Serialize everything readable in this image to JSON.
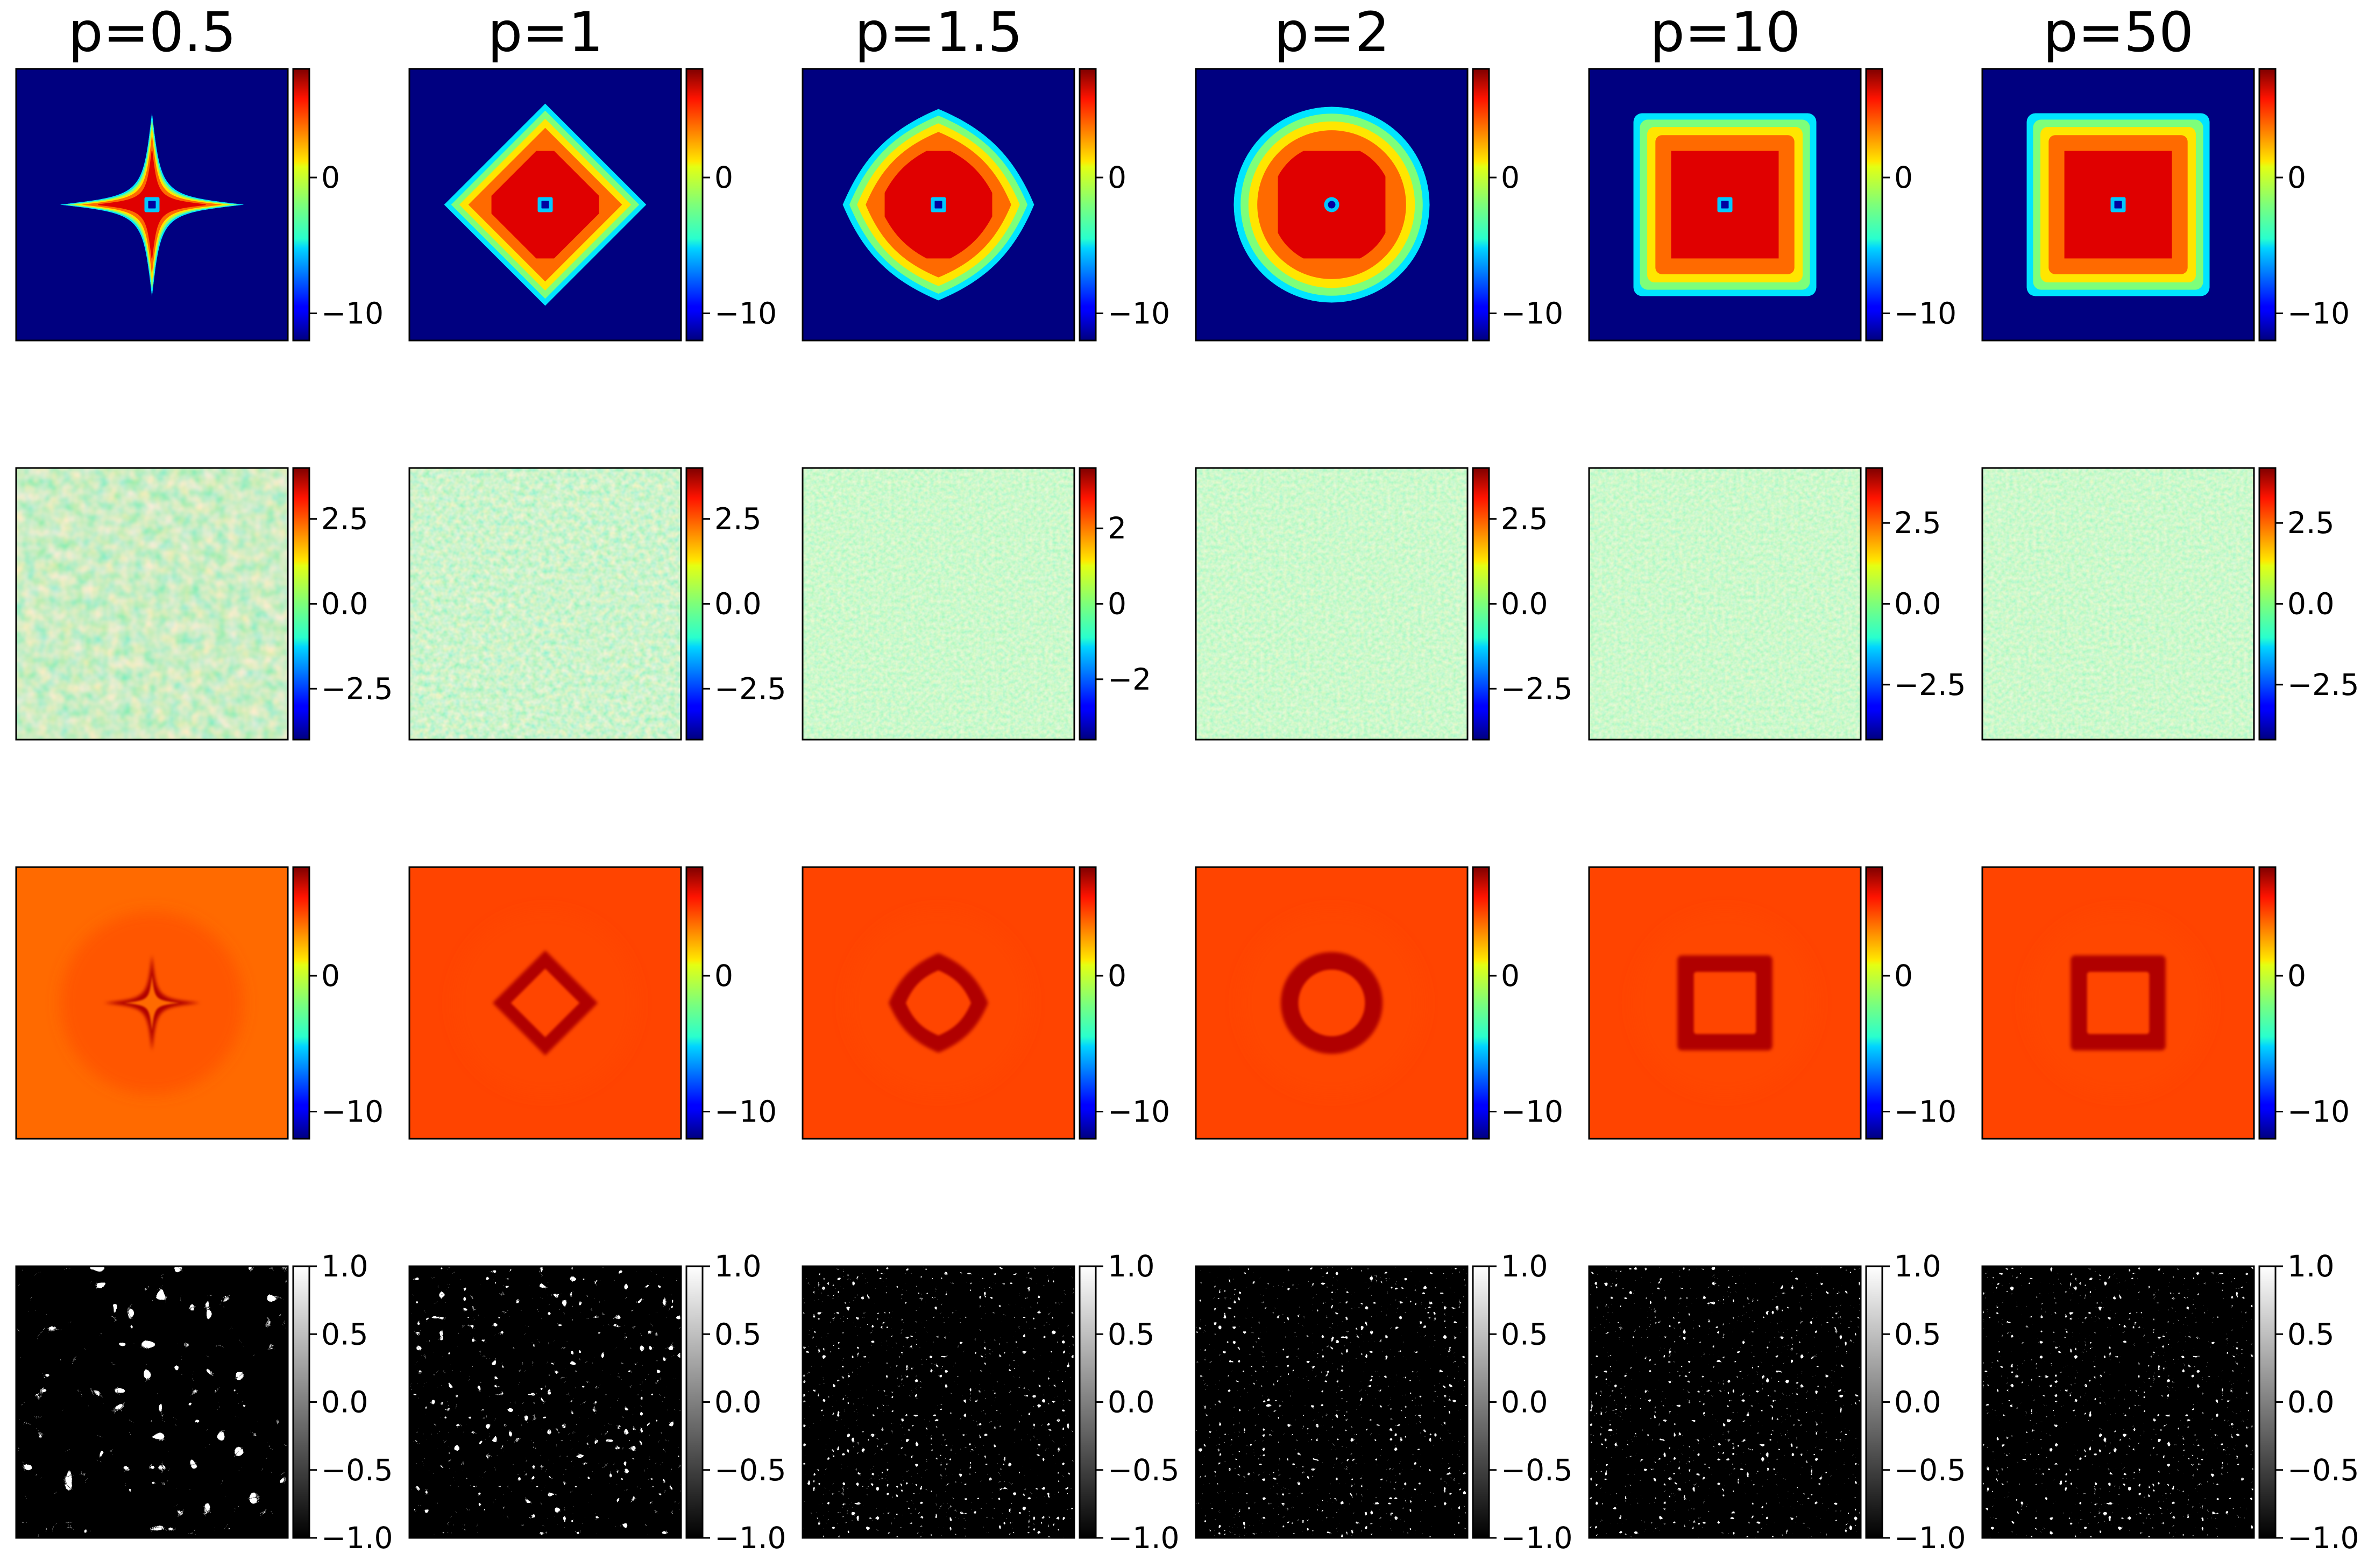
{
  "figure": {
    "columns": [
      "p=0.5",
      "p=1",
      "p=1.5",
      "p=2",
      "p=10",
      "p=50"
    ]
  },
  "chart_data": {
    "type": "heatmap",
    "layout": "4 rows x 6 columns grid of 2D field images, each with its own colorbar",
    "columns": [
      "p=0.5",
      "p=1",
      "p=1.5",
      "p=2",
      "p=10",
      "p=50"
    ],
    "rows": [
      {
        "description": "potential field with a p-norm shaped well (astroid for p<1, diamond p=1, rounded p=1.5, circle p=2, square for large p)",
        "colormap": "jet",
        "shape_per_column": [
          "astroid",
          "diamond",
          "rounded-diamond",
          "circle",
          "square",
          "square"
        ],
        "colorbars": [
          {
            "range": [
              -12,
              8
            ],
            "ticks": [
              0,
              -10
            ],
            "tick_labels": [
              "0",
              "−10"
            ]
          },
          {
            "range": [
              -12,
              8
            ],
            "ticks": [
              0,
              -10
            ],
            "tick_labels": [
              "0",
              "−10"
            ]
          },
          {
            "range": [
              -12,
              8
            ],
            "ticks": [
              0,
              -10
            ],
            "tick_labels": [
              "0",
              "−10"
            ]
          },
          {
            "range": [
              -12,
              8
            ],
            "ticks": [
              0,
              -10
            ],
            "tick_labels": [
              "0",
              "−10"
            ]
          },
          {
            "range": [
              -12,
              8
            ],
            "ticks": [
              0,
              -10
            ],
            "tick_labels": [
              "0",
              "−10"
            ]
          },
          {
            "range": [
              -12,
              8
            ],
            "ticks": [
              0,
              -10
            ],
            "tick_labels": [
              "0",
              "−10"
            ]
          }
        ]
      },
      {
        "description": "random-looking noisy field, finer texture with increasing p",
        "colormap": "jet",
        "colorbars": [
          {
            "range": [
              -4.0,
              4.0
            ],
            "ticks": [
              2.5,
              0.0,
              -2.5
            ],
            "tick_labels": [
              "2.5",
              "0.0",
              "−2.5"
            ]
          },
          {
            "range": [
              -4.0,
              4.0
            ],
            "ticks": [
              2.5,
              0.0,
              -2.5
            ],
            "tick_labels": [
              "2.5",
              "0.0",
              "−2.5"
            ]
          },
          {
            "range": [
              -3.6,
              3.6
            ],
            "ticks": [
              2,
              0,
              -2
            ],
            "tick_labels": [
              "2",
              "0",
              "−2"
            ]
          },
          {
            "range": [
              -4.0,
              4.0
            ],
            "ticks": [
              2.5,
              0.0,
              -2.5
            ],
            "tick_labels": [
              "2.5",
              "0.0",
              "−2.5"
            ]
          },
          {
            "range": [
              -4.2,
              4.2
            ],
            "ticks": [
              2.5,
              0.0,
              -2.5
            ],
            "tick_labels": [
              "2.5",
              "0.0",
              "−2.5"
            ]
          },
          {
            "range": [
              -4.2,
              4.2
            ],
            "ticks": [
              2.5,
              0.0,
              -2.5
            ],
            "tick_labels": [
              "2.5",
              "0.0",
              "−2.5"
            ]
          }
        ]
      },
      {
        "description": "smooth orange-red field with a dark-red ring matching the row-1 shape",
        "colormap": "jet",
        "colorbars": [
          {
            "range": [
              -12,
              8
            ],
            "ticks": [
              0,
              -10
            ],
            "tick_labels": [
              "0",
              "−10"
            ]
          },
          {
            "range": [
              -12,
              8
            ],
            "ticks": [
              0,
              -10
            ],
            "tick_labels": [
              "0",
              "−10"
            ]
          },
          {
            "range": [
              -12,
              8
            ],
            "ticks": [
              0,
              -10
            ],
            "tick_labels": [
              "0",
              "−10"
            ]
          },
          {
            "range": [
              -12,
              8
            ],
            "ticks": [
              0,
              -10
            ],
            "tick_labels": [
              "0",
              "−10"
            ]
          },
          {
            "range": [
              -12,
              8
            ],
            "ticks": [
              0,
              -10
            ],
            "tick_labels": [
              "0",
              "−10"
            ]
          },
          {
            "range": [
              -12,
              8
            ],
            "ticks": [
              0,
              -10
            ],
            "tick_labels": [
              "0",
              "−10"
            ]
          }
        ]
      },
      {
        "description": "binary labyrinth pattern in black and white, finer with increasing p",
        "colormap": "gray",
        "colorbars": [
          {
            "range": [
              -1.0,
              1.0
            ],
            "ticks": [
              1.0,
              0.5,
              0.0,
              -0.5,
              -1.0
            ],
            "tick_labels": [
              "1.0",
              "0.5",
              "0.0",
              "−0.5",
              "−1.0"
            ]
          },
          {
            "range": [
              -1.0,
              1.0
            ],
            "ticks": [
              1.0,
              0.5,
              0.0,
              -0.5,
              -1.0
            ],
            "tick_labels": [
              "1.0",
              "0.5",
              "0.0",
              "−0.5",
              "−1.0"
            ]
          },
          {
            "range": [
              -1.0,
              1.0
            ],
            "ticks": [
              1.0,
              0.5,
              0.0,
              -0.5,
              -1.0
            ],
            "tick_labels": [
              "1.0",
              "0.5",
              "0.0",
              "−0.5",
              "−1.0"
            ]
          },
          {
            "range": [
              -1.0,
              1.0
            ],
            "ticks": [
              1.0,
              0.5,
              0.0,
              -0.5,
              -1.0
            ],
            "tick_labels": [
              "1.0",
              "0.5",
              "0.0",
              "−0.5",
              "−1.0"
            ]
          },
          {
            "range": [
              -1.0,
              1.0
            ],
            "ticks": [
              1.0,
              0.5,
              0.0,
              -0.5,
              -1.0
            ],
            "tick_labels": [
              "1.0",
              "0.5",
              "0.0",
              "−0.5",
              "−1.0"
            ]
          },
          {
            "range": [
              -1.0,
              1.0
            ],
            "ticks": [
              1.0,
              0.5,
              0.0,
              -0.5,
              -1.0
            ],
            "tick_labels": [
              "1.0",
              "0.5",
              "0.0",
              "−0.5",
              "−1.0"
            ]
          }
        ]
      }
    ]
  },
  "colors": {
    "jet_dark_blue": "#000080",
    "jet_red": "#e00000",
    "row3_background": "#ff4400",
    "row3_ring": "#b00000"
  }
}
